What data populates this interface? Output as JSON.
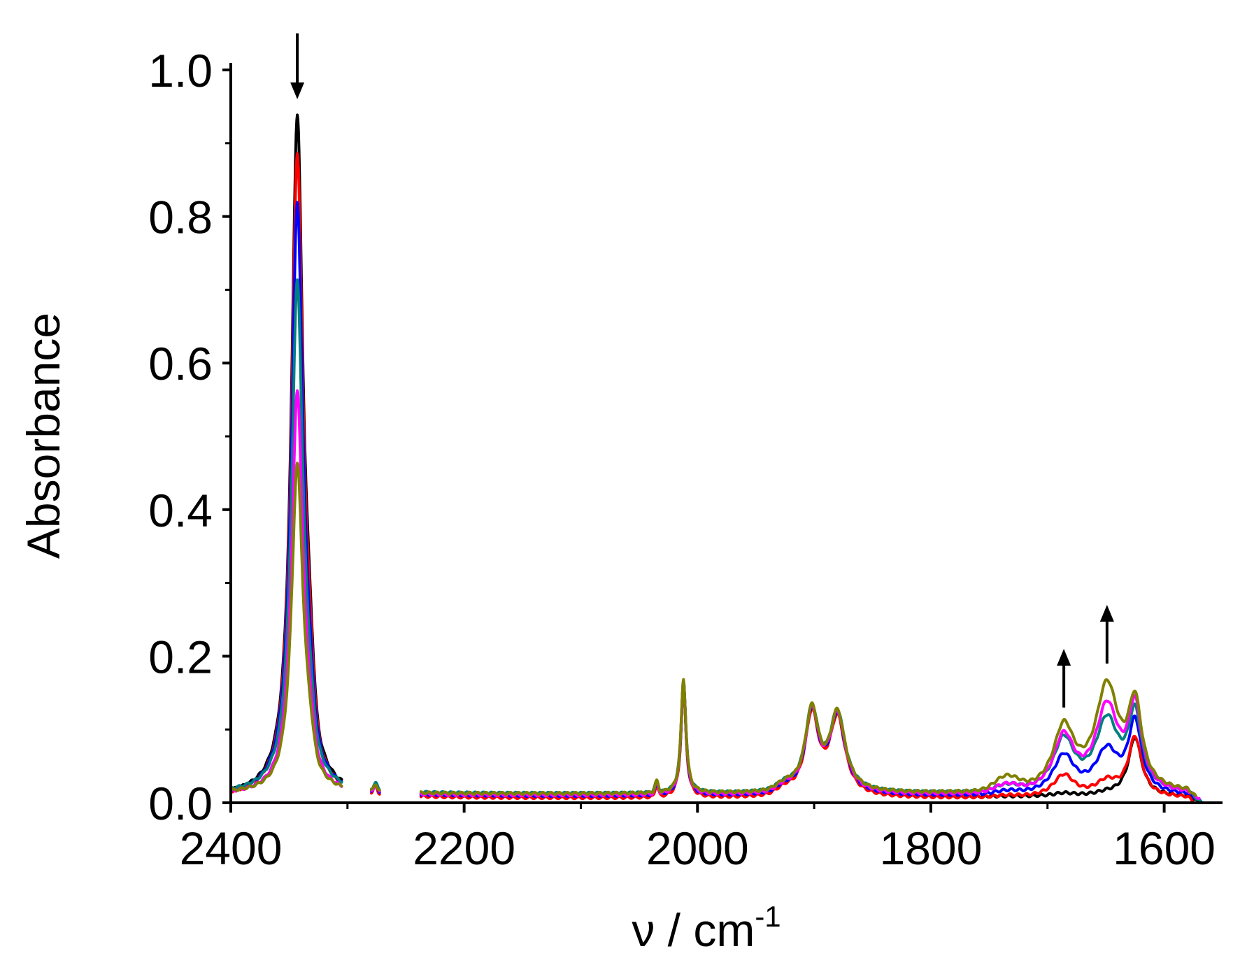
{
  "chart_data": {
    "type": "line",
    "title": "",
    "xlabel": {
      "symbol": "ν",
      "separator": " / ",
      "unit": "cm",
      "exponent": "-1"
    },
    "ylabel": "Absorbance",
    "xlim": [
      2400,
      1550
    ],
    "ylim": [
      0,
      1.0
    ],
    "x_reversed": true,
    "grid": false,
    "legend": "none",
    "x_ticks": [
      2400,
      2200,
      2000,
      1800,
      1600
    ],
    "x_tick_labels": [
      "2400",
      "2200",
      "2000",
      "1800",
      "1600"
    ],
    "y_ticks": [
      0.0,
      0.2,
      0.4,
      0.6,
      0.8,
      1.0
    ],
    "y_tick_labels": [
      "0.0",
      "0.2",
      "0.4",
      "0.6",
      "0.8",
      "1.0"
    ],
    "annotations": [
      {
        "kind": "arrow",
        "direction": "down",
        "x": 2343,
        "y_from": 1.05,
        "y_to": 0.96
      },
      {
        "kind": "arrow",
        "direction": "up",
        "x": 1686,
        "y_from": 0.13,
        "y_to": 0.21
      },
      {
        "kind": "arrow",
        "direction": "up",
        "x": 1649,
        "y_from": 0.19,
        "y_to": 0.27
      }
    ],
    "common": {
      "nu2_peak": {
        "x": 2343,
        "width": 6
      },
      "shoulder": {
        "x": 2333,
        "width": 5
      },
      "nu3_peak": {
        "x": 2012,
        "width": 2.5,
        "height": 0.155
      },
      "small_peak": {
        "x": 2035,
        "width": 2,
        "height": 0.015
      },
      "band_1902": {
        "x": 1902,
        "width": 7,
        "height": 0.11
      },
      "band_1880": {
        "x": 1880,
        "width": 8,
        "height": 0.105
      },
      "band_1925": {
        "x": 1925,
        "width": 10,
        "height": 0.008
      },
      "band_1625": {
        "x": 1625,
        "width": 7
      },
      "gap": [
        2305,
        2237
      ],
      "blip": {
        "x": 2276,
        "height": 0.01
      }
    },
    "series": [
      {
        "color": "#000000",
        "peak_2343": 0.93,
        "shoulder": 0.08,
        "baseline": 0.008,
        "band_1686": 0.004,
        "band_1649": 0.004,
        "band_1625": 0.08,
        "band_1735": 0.0
      },
      {
        "color": "#ff0000",
        "peak_2343": 0.88,
        "shoulder": 0.07,
        "baseline": 0.006,
        "band_1686": 0.03,
        "band_1649": 0.02,
        "band_1625": 0.08,
        "band_1735": 0.002
      },
      {
        "color": "#0000ff",
        "peak_2343": 0.81,
        "shoulder": 0.05,
        "baseline": 0.009,
        "band_1686": 0.052,
        "band_1649": 0.058,
        "band_1625": 0.095,
        "band_1735": 0.004
      },
      {
        "color": "#008080",
        "peak_2343": 0.7,
        "shoulder": 0.04,
        "baseline": 0.012,
        "band_1686": 0.07,
        "band_1649": 0.095,
        "band_1625": 0.1,
        "band_1735": 0.008
      },
      {
        "color": "#ff00ff",
        "peak_2343": 0.55,
        "shoulder": 0.035,
        "baseline": 0.01,
        "band_1686": 0.075,
        "band_1649": 0.115,
        "band_1625": 0.11,
        "band_1735": 0.01
      },
      {
        "color": "#808000",
        "peak_2343": 0.45,
        "shoulder": 0.03,
        "baseline": 0.012,
        "band_1686": 0.085,
        "band_1649": 0.14,
        "band_1625": 0.11,
        "band_1735": 0.018
      }
    ]
  }
}
